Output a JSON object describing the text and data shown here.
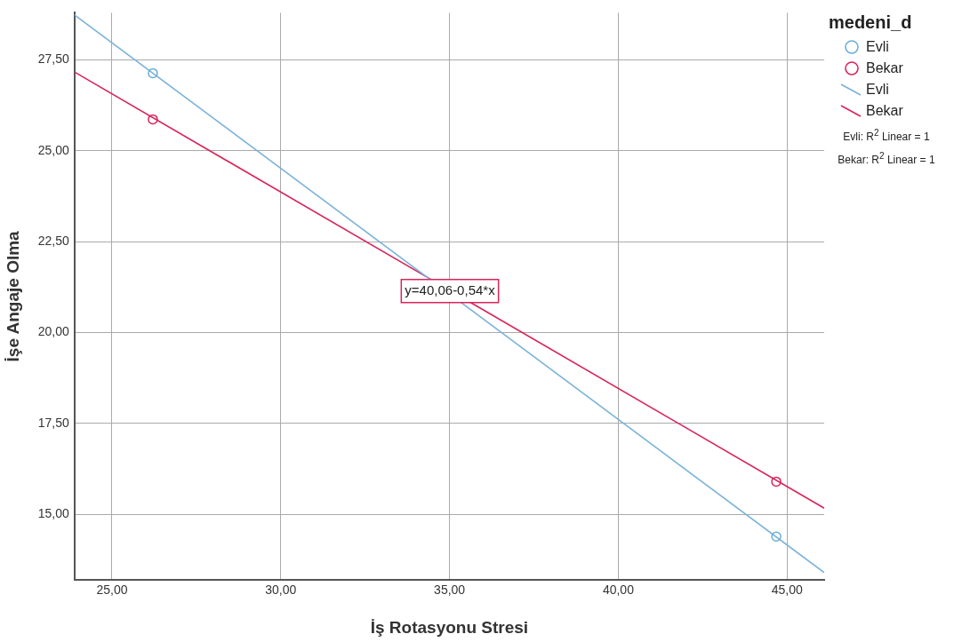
{
  "chart_data": {
    "type": "scatter",
    "xlabel": "İş Rotasyonu Stresi",
    "ylabel": "İşe Angaje Olma",
    "legend_title": "medeni_d",
    "legend": "right",
    "xlim": [
      23.89,
      46.1
    ],
    "ylim": [
      13.19,
      28.79
    ],
    "xticks": [
      {
        "value": 25,
        "label": "25,00"
      },
      {
        "value": 30,
        "label": "30,00"
      },
      {
        "value": 35,
        "label": "35,00"
      },
      {
        "value": 40,
        "label": "40,00"
      },
      {
        "value": 45,
        "label": "45,00"
      }
    ],
    "yticks": [
      {
        "value": 15,
        "label": "15,00"
      },
      {
        "value": 17.5,
        "label": "17,50"
      },
      {
        "value": 20,
        "label": "20,00"
      },
      {
        "value": 22.5,
        "label": "22,50"
      },
      {
        "value": 25,
        "label": "25,00"
      },
      {
        "value": 27.5,
        "label": "27,50"
      }
    ],
    "grid": true,
    "series": [
      {
        "name": "Evli",
        "marker": "circle",
        "color": "#6aaed6",
        "x": [
          26.21,
          44.68
        ],
        "values": [
          27.13,
          14.39
        ]
      },
      {
        "name": "Bekar",
        "marker": "circle",
        "color": "#d8245a",
        "x": [
          26.21,
          44.68
        ],
        "values": [
          25.86,
          15.9
        ]
      },
      {
        "name": "Evli",
        "type": "line",
        "marker": "none",
        "color": "#7ab3d8",
        "x": [
          23.89,
          46.1
        ],
        "values": [
          28.73,
          13.4
        ]
      },
      {
        "name": "Bekar",
        "type": "line",
        "marker": "none",
        "color": "#d8245a",
        "x": [
          23.89,
          46.1
        ],
        "values": [
          27.16,
          15.17
        ]
      }
    ],
    "annotations": [
      {
        "text": "y=40,06-0,54*x",
        "x": 35.01,
        "y": 21.14
      },
      "Evli: R$^{2}$ Linear = 1",
      "Bekar: R$^{2}$ Linear = 1"
    ]
  }
}
